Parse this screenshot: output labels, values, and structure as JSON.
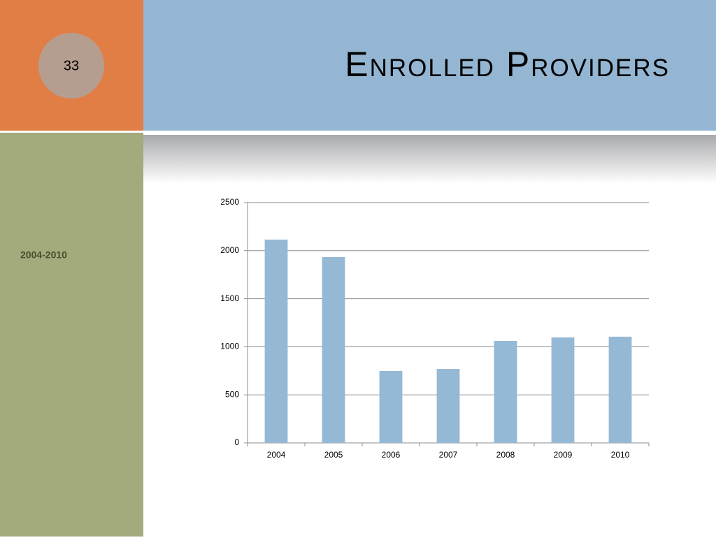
{
  "slide": {
    "number": "33"
  },
  "chart_data": {
    "type": "bar",
    "title": "Enrolled Providers",
    "subtitle": "2004-2010",
    "categories": [
      "2004",
      "2005",
      "2006",
      "2007",
      "2008",
      "2009",
      "2010"
    ],
    "values": [
      2115,
      1933,
      749,
      770,
      1061,
      1097,
      1105
    ],
    "color": "#95b8d5",
    "ylim": [
      0,
      2500
    ],
    "yticks": [
      0,
      500,
      1000,
      1500,
      2000,
      2500
    ],
    "grid": true
  }
}
